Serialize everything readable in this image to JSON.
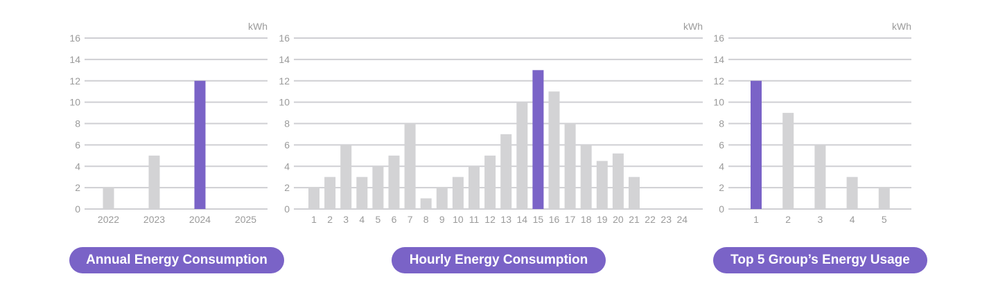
{
  "colors": {
    "highlight": "#7a63c7",
    "bar": "#d3d3d5",
    "grid": "#cfcfd3",
    "text": "#9a9a9a",
    "pill_bg": "#7a63c7",
    "pill_text": "#ffffff"
  },
  "chart_data": [
    {
      "type": "bar",
      "title": "Annual Energy Consumption",
      "unit": "kWh",
      "categories": [
        "2022",
        "2023",
        "2024",
        "2025"
      ],
      "values": [
        2,
        5,
        12,
        0
      ],
      "highlight": "2024",
      "ylim": [
        0,
        16
      ],
      "yticks": [
        0,
        2,
        4,
        6,
        8,
        10,
        12,
        14,
        16
      ],
      "grid": true
    },
    {
      "type": "bar",
      "title": "Hourly Energy Consumption",
      "unit": "kWh",
      "categories": [
        "1",
        "2",
        "3",
        "4",
        "5",
        "6",
        "7",
        "8",
        "9",
        "10",
        "11",
        "12",
        "13",
        "14",
        "15",
        "16",
        "17",
        "18",
        "19",
        "20",
        "21",
        "22",
        "23",
        "24"
      ],
      "values": [
        2,
        3,
        6,
        3,
        4,
        5,
        8,
        1,
        2,
        3,
        4,
        5,
        7,
        10,
        13,
        11,
        8,
        6,
        4.5,
        5.2,
        3,
        0,
        0,
        0
      ],
      "highlight": "15",
      "ylim": [
        0,
        16
      ],
      "yticks": [
        0,
        2,
        4,
        6,
        8,
        10,
        12,
        14,
        16
      ],
      "grid": true
    },
    {
      "type": "bar",
      "title": "Top 5 Group’s Energy Usage",
      "unit": "kWh",
      "categories": [
        "1",
        "2",
        "3",
        "4",
        "5"
      ],
      "values": [
        12,
        9,
        6,
        3,
        2
      ],
      "highlight": "1",
      "ylim": [
        0,
        16
      ],
      "yticks": [
        0,
        2,
        4,
        6,
        8,
        10,
        12,
        14,
        16
      ],
      "grid": true
    }
  ]
}
